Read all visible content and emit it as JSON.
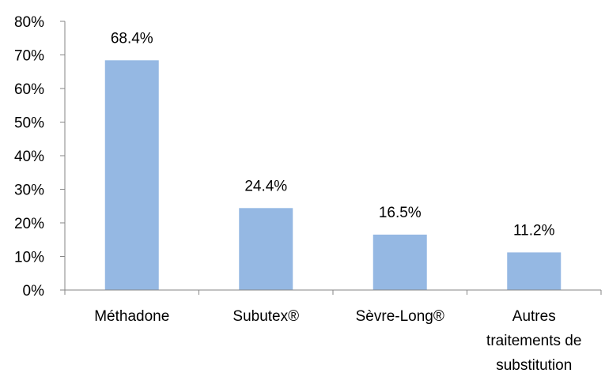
{
  "chart_data": {
    "type": "bar",
    "title": "",
    "xlabel": "",
    "ylabel": "",
    "categories": [
      [
        "Méthadone"
      ],
      [
        "Subutex®"
      ],
      [
        "Sèvre-Long®"
      ],
      [
        "Autres",
        "traitements de",
        "substitution"
      ]
    ],
    "values": [
      68.4,
      24.4,
      16.5,
      11.2
    ],
    "value_labels": [
      "68.4%",
      "24.4%",
      "16.5%",
      "11.2%"
    ],
    "ylim": [
      0,
      80
    ],
    "y_ticks": [
      0,
      10,
      20,
      30,
      40,
      50,
      60,
      70,
      80
    ],
    "y_tick_labels": [
      "0%",
      "10%",
      "20%",
      "30%",
      "40%",
      "50%",
      "60%",
      "70%",
      "80%"
    ],
    "grid": false,
    "legend": "none",
    "bar_color": "#95b8e3",
    "axis_color": "#868686"
  }
}
